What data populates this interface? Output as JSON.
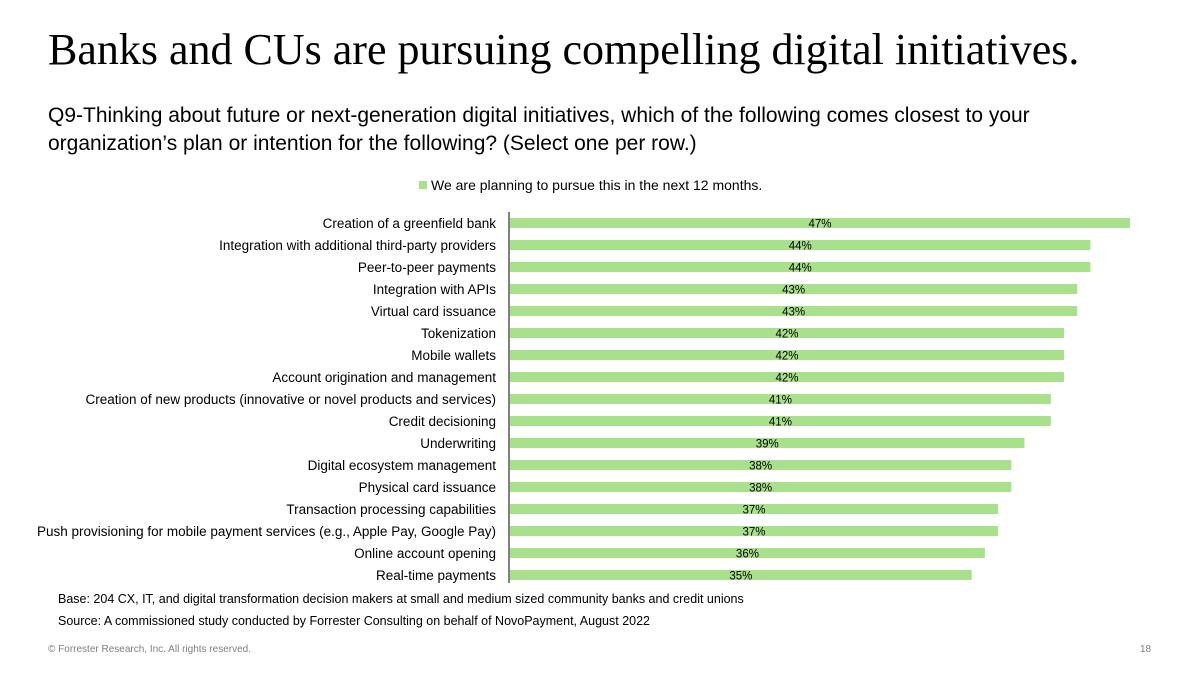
{
  "slide": {
    "title": "Banks and CUs are pursuing compelling digital initiatives.",
    "question": "Q9-Thinking about future or next-generation digital initiatives, which of the following comes closest to your organization’s plan or intention for the following? (Select one per row.)",
    "base_note": "Base: 204 CX, IT, and digital transformation decision makers at small and medium sized community banks and credit unions",
    "source_note": "Source: A commissioned study conducted by Forrester Consulting on behalf of NovoPayment, August 2022",
    "copyright": "© Forrester Research, Inc. All rights reserved.",
    "page_number": "18"
  },
  "chart_data": {
    "type": "bar",
    "orientation": "horizontal",
    "legend_position": "top",
    "grid": false,
    "xlim": [
      0,
      47
    ],
    "bar_color": "#a9e08c",
    "categories": [
      "Creation of a greenfield bank",
      "Integration with additional third-party providers",
      "Peer-to-peer payments",
      "Integration with APIs",
      "Virtual card issuance",
      "Tokenization",
      "Mobile wallets",
      "Account origination and management",
      "Creation of new products (innovative or novel products and services)",
      "Credit decisioning",
      "Underwriting",
      "Digital ecosystem management",
      "Physical card issuance",
      "Transaction processing capabilities",
      "Push provisioning for mobile payment services (e.g., Apple Pay, Google Pay)",
      "Online account opening",
      "Real-time payments"
    ],
    "series": [
      {
        "name": "We are planning to pursue this in the next 12 months.",
        "values": [
          47,
          44,
          44,
          43,
          43,
          42,
          42,
          42,
          41,
          41,
          39,
          38,
          38,
          37,
          37,
          36,
          35
        ],
        "labels": [
          "47%",
          "44%",
          "44%",
          "43%",
          "43%",
          "42%",
          "42%",
          "42%",
          "41%",
          "41%",
          "39%",
          "38%",
          "38%",
          "37%",
          "37%",
          "36%",
          "35%"
        ]
      }
    ]
  }
}
